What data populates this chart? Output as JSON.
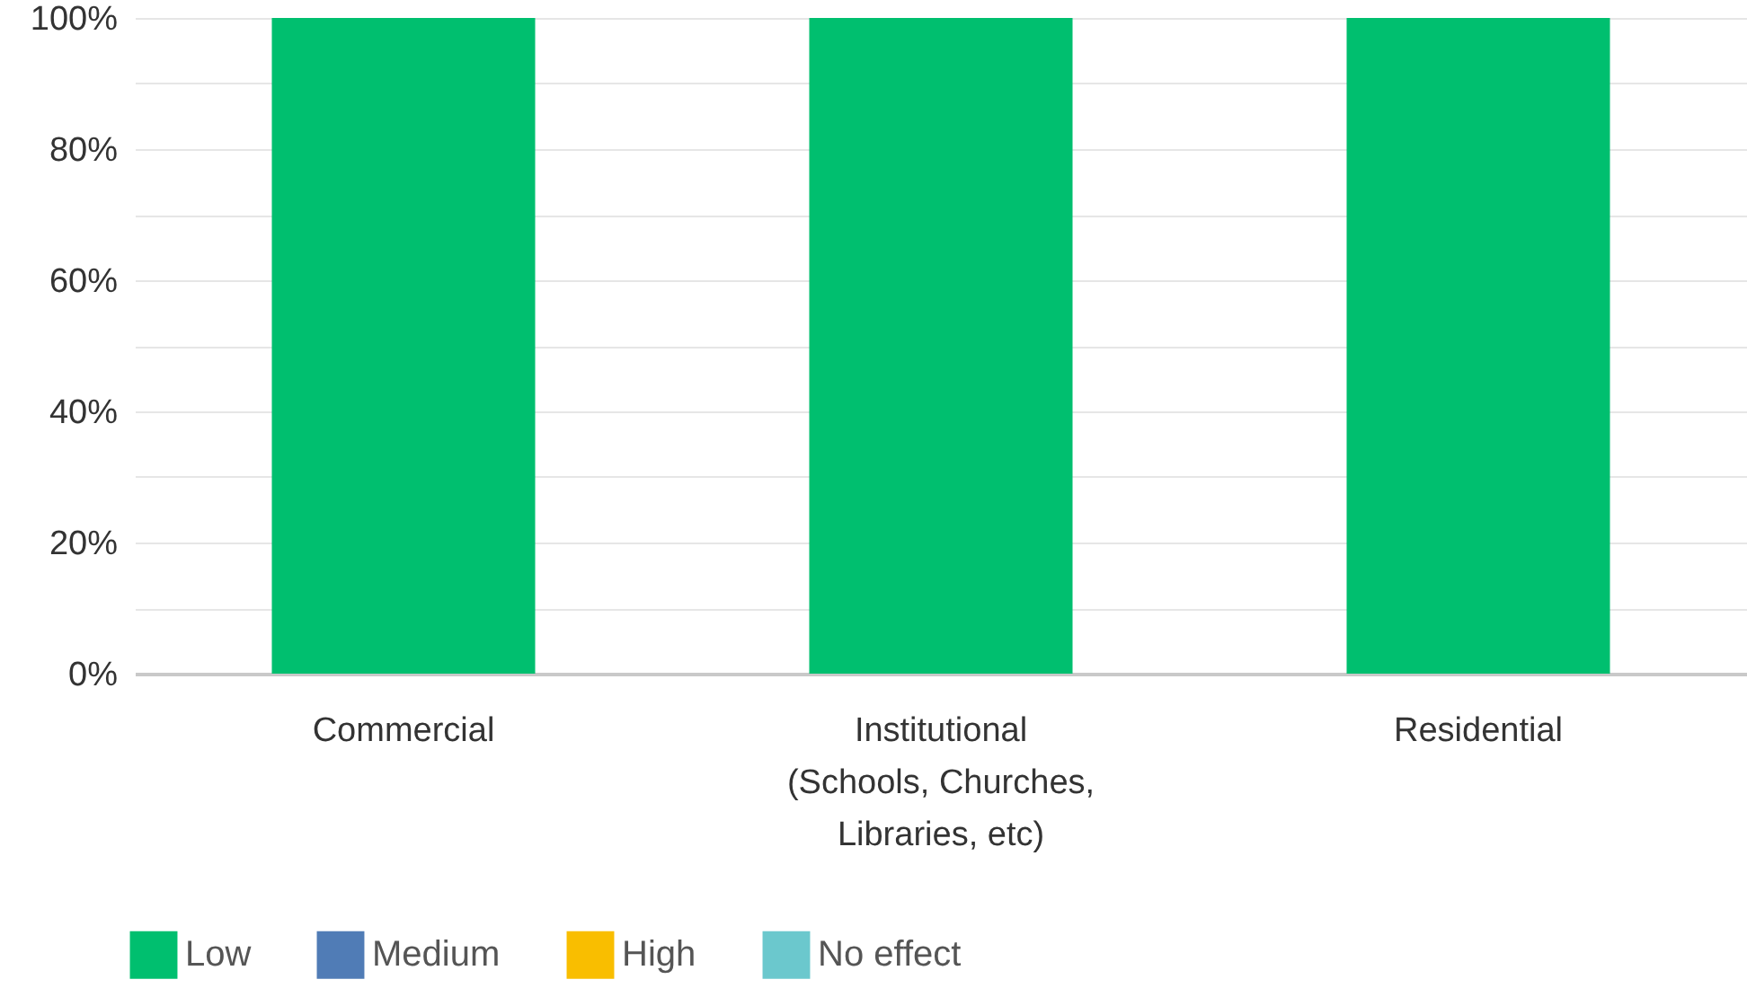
{
  "chart_data": {
    "type": "bar",
    "stacked": true,
    "categories": [
      "Commercial",
      "Institutional (Schools, Churches, Libraries, etc)",
      "Residential"
    ],
    "series": [
      {
        "name": "Low",
        "color": "#00bf6f",
        "values": [
          100,
          100,
          100
        ]
      },
      {
        "name": "Medium",
        "color": "#507cb6",
        "values": [
          0,
          0,
          0
        ]
      },
      {
        "name": "High",
        "color": "#f9be00",
        "values": [
          0,
          0,
          0
        ]
      },
      {
        "name": "No effect",
        "color": "#6bc8cd",
        "values": [
          0,
          0,
          0
        ]
      }
    ],
    "ylim": [
      0,
      100
    ],
    "yticks": [
      {
        "value": 0,
        "label": "0%"
      },
      {
        "value": 10,
        "label": null
      },
      {
        "value": 20,
        "label": "20%"
      },
      {
        "value": 30,
        "label": null
      },
      {
        "value": 40,
        "label": "40%"
      },
      {
        "value": 50,
        "label": null
      },
      {
        "value": 60,
        "label": "60%"
      },
      {
        "value": 70,
        "label": null
      },
      {
        "value": 80,
        "label": "80%"
      },
      {
        "value": 90,
        "label": null
      },
      {
        "value": 100,
        "label": "100%"
      }
    ],
    "grid": true,
    "legend": "bottom"
  }
}
